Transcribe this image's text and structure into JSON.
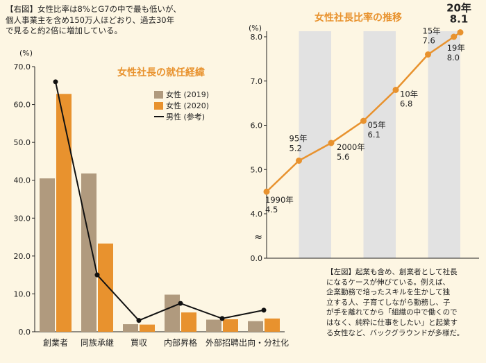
{
  "notes": {
    "right_figure_note": "【右図】女性比率は8%とG7の中で最も低いが、\n個人事業主を含め150万人ほどおり、過去30年\nで見ると約2倍に増加している。",
    "left_figure_note": "【左図】起業も含め、創業者として社長\nになるケースが伸びている。例えば、\n企業勤務で培ったスキルを生かして独\n立する人、子育てしながら勤務し、子\nが手を離れてから「組織の中で働くので\nはなく、純粋に仕事をしたい」と起業す\nる女性など、バックグラウンドが多様だ。"
  },
  "colors": {
    "female2019": "#b09a7e",
    "female2020": "#e8922e",
    "male": "#111111",
    "line": "#e8922e",
    "title": "#e8922e",
    "band": "#e2e2e2",
    "background": "#fdf6e3"
  },
  "chart_data": [
    {
      "type": "bar",
      "title": "女性社長の就任経緯",
      "unit": "(%)",
      "ylim": [
        0,
        70
      ],
      "yticks": [
        "0.0",
        "10.0",
        "20.0",
        "30.0",
        "40.0",
        "50.0",
        "60.0",
        "70.0"
      ],
      "categories": [
        "創業者",
        "同族承継",
        "買収",
        "内部昇格",
        "外部招聘",
        "出向・分社化"
      ],
      "series": [
        {
          "name": "女性 (2019)",
          "values": [
            40.5,
            41.8,
            2.0,
            9.8,
            3.2,
            2.8
          ]
        },
        {
          "name": "女性 (2020)",
          "values": [
            62.8,
            23.3,
            1.9,
            5.1,
            3.3,
            3.5
          ]
        }
      ],
      "line_series": {
        "name": "男性 (参考)",
        "values": [
          66.0,
          15.0,
          3.0,
          7.5,
          3.5,
          5.7
        ]
      },
      "legend_position": "top-right"
    },
    {
      "type": "line",
      "title": "女性社長比率の推移",
      "unit": "(%)",
      "ylim": [
        4.0,
        8.0
      ],
      "yticks": [
        "0.0",
        "4.0",
        "5.0",
        "6.0",
        "7.0",
        "8.0"
      ],
      "axis_break": "≈",
      "points": [
        {
          "year": 1990,
          "value": 4.5,
          "label_year": "1990年",
          "label_value": "4.5"
        },
        {
          "year": 1995,
          "value": 5.2,
          "label_year": "95年",
          "label_value": "5.2"
        },
        {
          "year": 2000,
          "value": 5.6,
          "label_year": "2000年",
          "label_value": "5.6"
        },
        {
          "year": 2005,
          "value": 6.1,
          "label_year": "05年",
          "label_value": "6.1"
        },
        {
          "year": 2010,
          "value": 6.8,
          "label_year": "10年",
          "label_value": "6.8"
        },
        {
          "year": 2015,
          "value": 7.6,
          "label_year": "15年",
          "label_value": "7.6"
        },
        {
          "year": 2019,
          "value": 8.0,
          "label_year": "19年",
          "label_value": "8.0"
        },
        {
          "year": 2020,
          "value": 8.1,
          "label_year": "20年",
          "label_value": "8.1"
        }
      ]
    }
  ]
}
